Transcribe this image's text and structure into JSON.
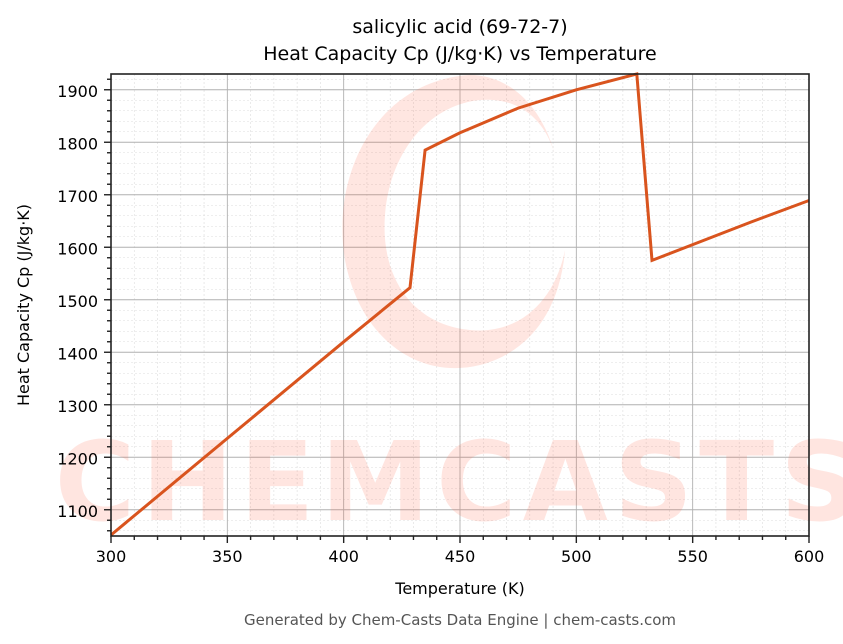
{
  "chart_data": {
    "type": "line",
    "title": "salicylic acid (69-72-7)",
    "subtitle": "Heat Capacity Cp (J/kg·K) vs Temperature",
    "xlabel": "Temperature (K)",
    "ylabel": "Heat Capacity Cp (J/kg·K)",
    "xlim": [
      300,
      600
    ],
    "ylim": [
      1050,
      1930
    ],
    "x_ticks": [
      300,
      350,
      400,
      450,
      500,
      550,
      600
    ],
    "y_ticks": [
      1100,
      1200,
      1300,
      1400,
      1500,
      1600,
      1700,
      1800,
      1900
    ],
    "grid": true,
    "legend": null,
    "series": [
      {
        "name": "Cp",
        "color": "#d9541e",
        "x": [
          300,
          350,
          400,
          428.5,
          435,
          450,
          475,
          500,
          526,
          532.5,
          550,
          575,
          600
        ],
        "y": [
          1052,
          1236,
          1420,
          1523,
          1785,
          1818,
          1865,
          1900,
          1930,
          1575,
          1605,
          1648,
          1689
        ]
      }
    ]
  },
  "header": {
    "title": "salicylic acid (69-72-7)",
    "subtitle": "Heat Capacity Cp (J/kg·K) vs Temperature"
  },
  "axes": {
    "xlabel": "Temperature (K)",
    "ylabel": "Heat Capacity Cp (J/kg·K)",
    "x_tick_labels": [
      "300",
      "350",
      "400",
      "450",
      "500",
      "550",
      "600"
    ],
    "y_tick_labels": [
      "1100",
      "1200",
      "1300",
      "1400",
      "1500",
      "1600",
      "1700",
      "1800",
      "1900"
    ]
  },
  "watermark": {
    "text": "CHEMCASTS",
    "color": "#ff6347"
  },
  "footer": {
    "text": "Generated by Chem-Casts Data Engine | chem-casts.com"
  }
}
